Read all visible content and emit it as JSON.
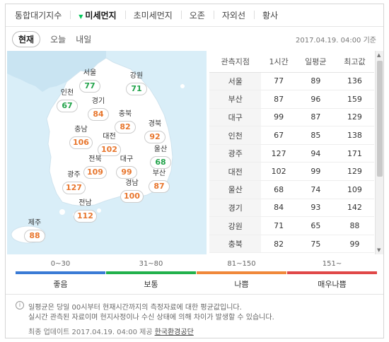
{
  "top_tabs": [
    "통합대기지수",
    "미세먼지",
    "초미세먼지",
    "오존",
    "자외선",
    "황사"
  ],
  "sub_tabs": [
    "현재",
    "오늘",
    "내일"
  ],
  "timestamp": "2017.04.19. 04:00 기준",
  "regions": [
    {
      "name": "서울",
      "value": "77",
      "level": "normal"
    },
    {
      "name": "강원",
      "value": "71",
      "level": "normal"
    },
    {
      "name": "인천",
      "value": "67",
      "level": "normal"
    },
    {
      "name": "경기",
      "value": "84",
      "level": "bad"
    },
    {
      "name": "충북",
      "value": "82",
      "level": "bad"
    },
    {
      "name": "경북",
      "value": "92",
      "level": "bad"
    },
    {
      "name": "충남",
      "value": "106",
      "level": "bad"
    },
    {
      "name": "대전",
      "value": "102",
      "level": "bad"
    },
    {
      "name": "울산",
      "value": "68",
      "level": "normal"
    },
    {
      "name": "전북",
      "value": "109",
      "level": "bad"
    },
    {
      "name": "대구",
      "value": "99",
      "level": "bad"
    },
    {
      "name": "광주",
      "value": "127",
      "level": "bad"
    },
    {
      "name": "경남",
      "value": "100",
      "level": "bad"
    },
    {
      "name": "부산",
      "value": "87",
      "level": "bad"
    },
    {
      "name": "전남",
      "value": "112",
      "level": "bad"
    },
    {
      "name": "제주",
      "value": "88",
      "level": "bad"
    }
  ],
  "table": {
    "headers": [
      "관측지점",
      "1시간",
      "일평균",
      "최고값"
    ],
    "rows": [
      [
        "서울",
        "77",
        "89",
        "136"
      ],
      [
        "부산",
        "87",
        "96",
        "159"
      ],
      [
        "대구",
        "99",
        "87",
        "129"
      ],
      [
        "인천",
        "67",
        "85",
        "138"
      ],
      [
        "광주",
        "127",
        "94",
        "171"
      ],
      [
        "대전",
        "102",
        "99",
        "129"
      ],
      [
        "울산",
        "68",
        "74",
        "109"
      ],
      [
        "경기",
        "84",
        "93",
        "142"
      ],
      [
        "강원",
        "71",
        "65",
        "88"
      ],
      [
        "충북",
        "82",
        "75",
        "99"
      ]
    ]
  },
  "legend": [
    {
      "range": "0~30",
      "label": "좋음",
      "color": "#3a7bd5"
    },
    {
      "range": "31~80",
      "label": "보통",
      "color": "#22b14c"
    },
    {
      "range": "81~150",
      "label": "나쁨",
      "color": "#f0883a"
    },
    {
      "range": "151~",
      "label": "매우나쁨",
      "color": "#e04848"
    }
  ],
  "info": {
    "line1": "일평균은 당일 00시부터 현재시간까지의 측정자료에 대한 평균값입니다.",
    "line2": "실시간 관측된 자료이며 현지사정이나 수신 상태에 의해 차이가 발생할 수 있습니다.",
    "update": "최종 업데이트 2017.04.19. 04:00 제공",
    "source": "한국환경공단"
  }
}
